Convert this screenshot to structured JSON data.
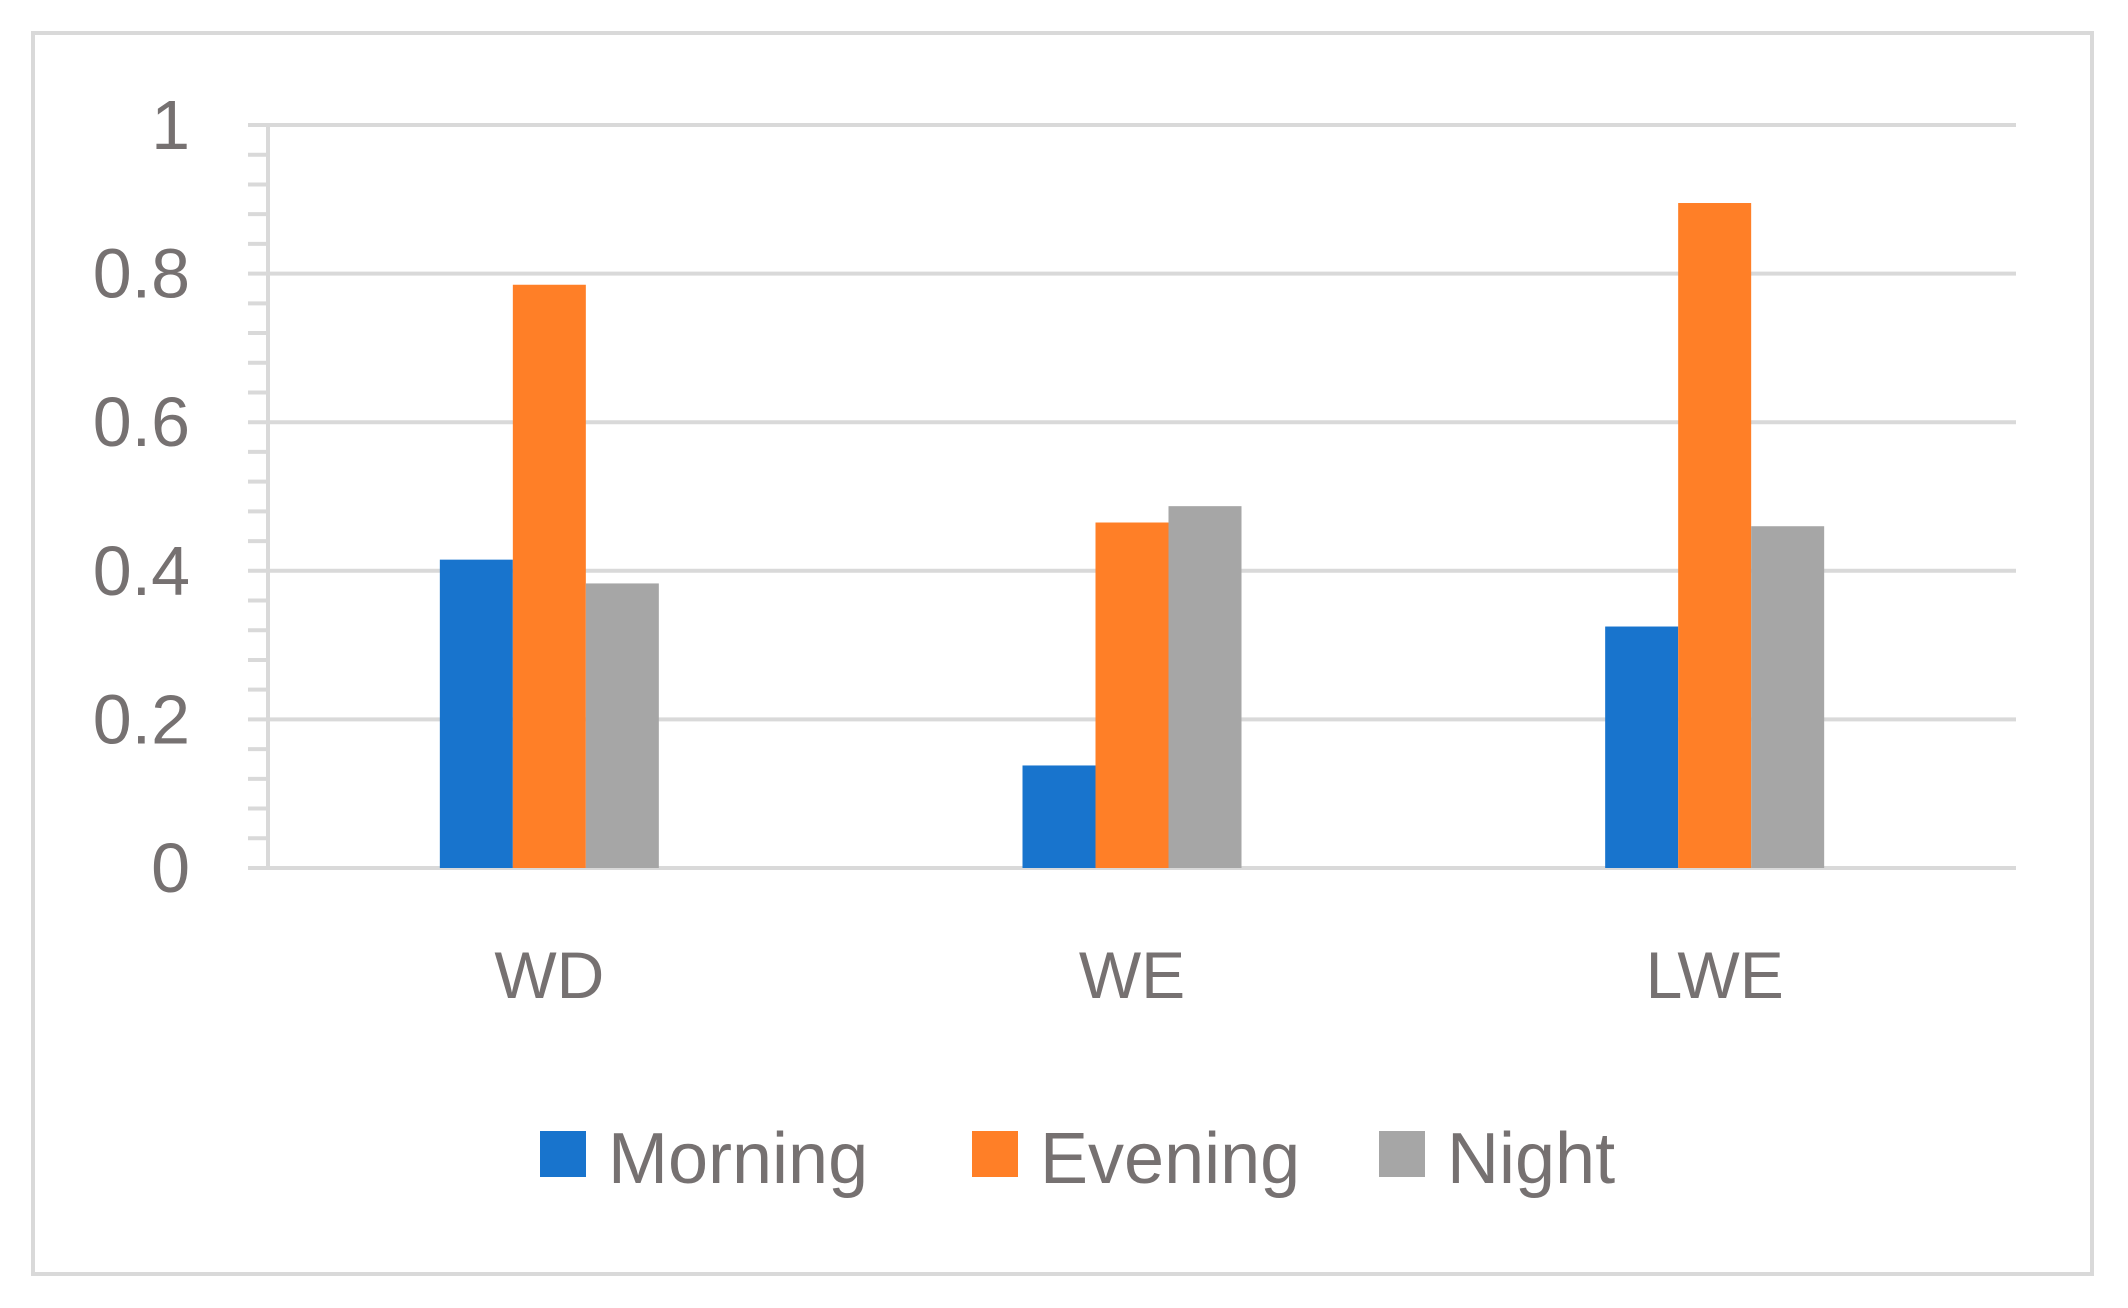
{
  "chart_data": {
    "type": "bar",
    "categories": [
      "WD",
      "WE",
      "LWE"
    ],
    "series": [
      {
        "name": "Morning",
        "color": "#1874cd",
        "values": [
          0.415,
          0.138,
          0.325
        ]
      },
      {
        "name": "Evening",
        "color": "#ff7f27",
        "values": [
          0.785,
          0.465,
          0.895
        ]
      },
      {
        "name": "Night",
        "color": "#a6a6a6",
        "values": [
          0.383,
          0.487,
          0.46
        ]
      }
    ],
    "y_ticks": [
      "0",
      "0.2",
      "0.4",
      "0.6",
      "0.8",
      "1"
    ],
    "ylim": [
      0,
      1
    ],
    "grid": true,
    "legend_position": "bottom",
    "title": "",
    "xlabel": "",
    "ylabel": ""
  },
  "colors": {
    "grid": "#d9d9d9",
    "axis": "#d9d9d9",
    "text": "#767171"
  }
}
